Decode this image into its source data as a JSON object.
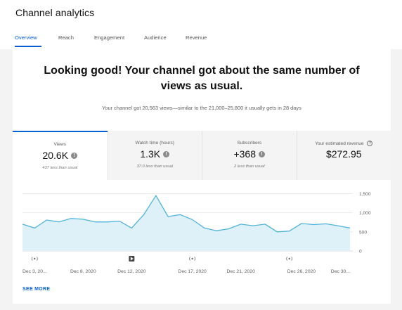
{
  "header": {
    "title": "Channel analytics"
  },
  "tabs": [
    {
      "label": "Overview",
      "active": true
    },
    {
      "label": "Reach"
    },
    {
      "label": "Engagement"
    },
    {
      "label": "Audience"
    },
    {
      "label": "Revenue"
    }
  ],
  "summary": {
    "headline_line1": "Looking good! Your channel got about the same number of",
    "headline_line2": "views as usual.",
    "subline": "Your channel got 20,563 views—similar to the 21,000–25,800 it usually gets in 28 days"
  },
  "metrics": [
    {
      "label": "Views",
      "value": "20.6K",
      "sub": "437 less than usual"
    },
    {
      "label": "Watch time (hours)",
      "value": "1.3K",
      "sub": "37.0 less than usual"
    },
    {
      "label": "Subscribers",
      "value": "+368",
      "sub": "2 less than usual"
    },
    {
      "label": "Your estimated revenue",
      "value": "$272.95"
    }
  ],
  "icons": {
    "info": "info-icon",
    "help": "help-icon",
    "upload": "video-upload-icon",
    "live": "live-stream-icon"
  },
  "colors": {
    "accent": "#065fd4",
    "line": "#4fb3d9",
    "area": "#dff1f8"
  },
  "chart_data": {
    "type": "area",
    "series": [
      {
        "values": [
          700,
          600,
          810,
          760,
          850,
          830,
          760,
          760,
          780,
          600,
          950,
          1450,
          900,
          950,
          820,
          600,
          530,
          580,
          700,
          660,
          700,
          500,
          520,
          720,
          690,
          710,
          660,
          600
        ]
      }
    ],
    "x_labels": [
      "Dec 3, 20...",
      "Dec 8, 2020",
      "Dec 12, 2020",
      "Dec 17, 2020",
      "Dec 21, 2020",
      "Dec 26, 2020",
      "Dec 30..."
    ],
    "x_label_indices": [
      0,
      5,
      9,
      14,
      18,
      23,
      27
    ],
    "y_ticks": [
      1500,
      1000,
      500,
      0
    ],
    "y_tick_labels": [
      "1,500",
      "1,000",
      "500",
      "0"
    ],
    "ylim": [
      0,
      1600
    ],
    "grid": true,
    "markers": [
      {
        "type": "live",
        "index": 1
      },
      {
        "type": "upload",
        "index": 9
      },
      {
        "type": "live",
        "index": 14
      },
      {
        "type": "live",
        "index": 22
      }
    ]
  },
  "see_more": "SEE MORE"
}
